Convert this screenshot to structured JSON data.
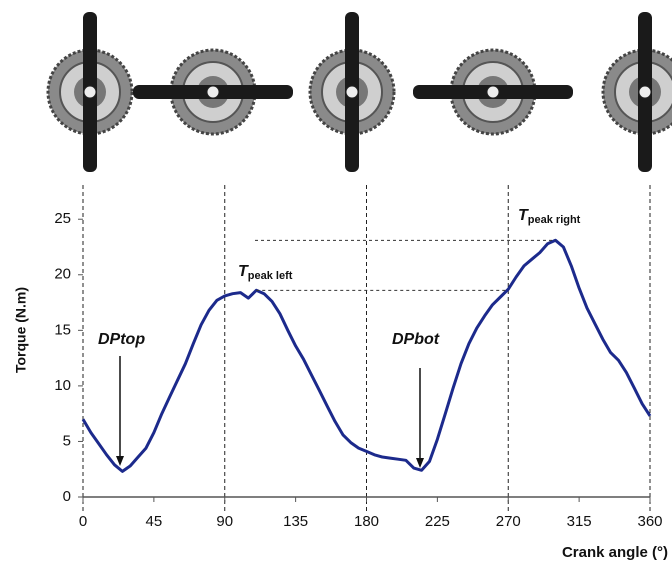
{
  "chart_data": {
    "type": "line",
    "x_label": "Crank angle (°)",
    "y_label": "Torque (N.m)",
    "x": [
      0,
      5,
      10,
      15,
      20,
      25,
      30,
      35,
      40,
      45,
      50,
      55,
      60,
      65,
      70,
      75,
      80,
      85,
      90,
      95,
      100,
      105,
      110,
      115,
      120,
      125,
      130,
      135,
      140,
      145,
      150,
      155,
      160,
      165,
      170,
      175,
      180,
      185,
      190,
      195,
      200,
      205,
      210,
      215,
      220,
      225,
      230,
      235,
      240,
      245,
      250,
      255,
      260,
      265,
      270,
      275,
      280,
      285,
      290,
      295,
      300,
      305,
      310,
      315,
      320,
      325,
      330,
      335,
      340,
      345,
      350,
      355,
      360
    ],
    "values": [
      7.0,
      5.8,
      4.8,
      3.8,
      2.9,
      2.3,
      2.8,
      3.6,
      4.4,
      5.8,
      7.5,
      9.0,
      10.5,
      12.0,
      13.8,
      15.5,
      16.8,
      17.7,
      18.1,
      18.3,
      18.4,
      17.9,
      18.6,
      18.3,
      17.6,
      16.5,
      15.0,
      13.6,
      12.4,
      11.0,
      9.6,
      8.2,
      6.8,
      5.6,
      4.9,
      4.4,
      4.1,
      3.8,
      3.6,
      3.5,
      3.4,
      3.3,
      2.6,
      2.4,
      3.2,
      5.2,
      7.5,
      9.8,
      12.0,
      13.8,
      15.2,
      16.3,
      17.3,
      18.0,
      18.7,
      19.8,
      20.8,
      21.4,
      22.0,
      22.8,
      23.1,
      22.5,
      20.8,
      18.8,
      17.0,
      15.6,
      14.2,
      13.0,
      12.3,
      11.2,
      9.8,
      8.4,
      7.3
    ],
    "color": "#1c2a8c",
    "xlim": [
      0,
      360
    ],
    "xticks": [
      0,
      45,
      90,
      135,
      180,
      225,
      270,
      315,
      360
    ],
    "ylim": [
      0,
      27
    ],
    "yticks": [
      0,
      5,
      10,
      15,
      20,
      25
    ],
    "reference_lines_x": [
      0,
      90,
      180,
      270,
      360
    ],
    "annotations": [
      {
        "text": "DPtop"
      },
      {
        "text": "DPbot"
      },
      {
        "text": "T",
        "sub": "peak left"
      },
      {
        "text": "T",
        "sub": "peak right"
      }
    ]
  }
}
